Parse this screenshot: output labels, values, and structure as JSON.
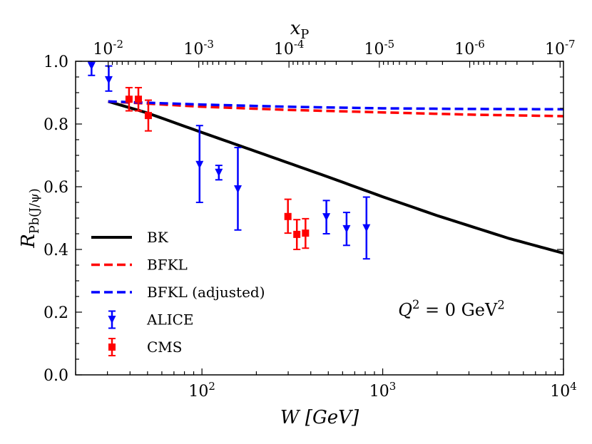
{
  "chart_data": {
    "type": "line",
    "xlabel": "W [GeV]",
    "ylabel": "R_Pb(J/ψ)",
    "top_xlabel": "x_P",
    "x_scale": "log",
    "xlim": [
      20,
      10000
    ],
    "ylim": [
      0.0,
      1.0
    ],
    "x_ticks": [
      {
        "value": 100,
        "label": "10^2"
      },
      {
        "value": 1000,
        "label": "10^3"
      },
      {
        "value": 10000,
        "label": "10^4"
      }
    ],
    "y_ticks": [
      {
        "value": 0.0,
        "label": "0.0"
      },
      {
        "value": 0.2,
        "label": "0.2"
      },
      {
        "value": 0.4,
        "label": "0.4"
      },
      {
        "value": 0.6,
        "label": "0.6"
      },
      {
        "value": 0.8,
        "label": "0.8"
      },
      {
        "value": 1.0,
        "label": "1.0"
      }
    ],
    "top_ticks": [
      {
        "W": 30.3,
        "label": "10^-2"
      },
      {
        "W": 96,
        "label": "10^-3"
      },
      {
        "W": 303,
        "label": "10^-4"
      },
      {
        "W": 958,
        "label": "10^-5"
      },
      {
        "W": 3029,
        "label": "10^-6"
      },
      {
        "W": 9579,
        "label": "10^-7"
      }
    ],
    "annotation": "Q^2 = 0 GeV^2",
    "legend_position": "lower-left",
    "grid": false,
    "series": [
      {
        "name": "BK",
        "kind": "line",
        "style": "solid",
        "color": "#000000",
        "x": [
          30.3,
          50,
          100,
          200,
          500,
          1000,
          2000,
          5000,
          10000
        ],
        "y": [
          0.872,
          0.835,
          0.773,
          0.712,
          0.631,
          0.568,
          0.508,
          0.435,
          0.388
        ]
      },
      {
        "name": "BFKL",
        "kind": "line",
        "style": "dashed",
        "color": "#ff0000",
        "x": [
          30.3,
          100,
          300,
          1000,
          3000,
          10000
        ],
        "y": [
          0.872,
          0.855,
          0.845,
          0.837,
          0.83,
          0.825
        ]
      },
      {
        "name": "BFKL (adjusted)",
        "kind": "line",
        "style": "dashed",
        "color": "#0000ff",
        "x": [
          30.3,
          100,
          300,
          1000,
          3000,
          10000
        ],
        "y": [
          0.872,
          0.862,
          0.855,
          0.85,
          0.848,
          0.847
        ]
      },
      {
        "name": "ALICE",
        "kind": "points",
        "marker": "triangle-down",
        "color": "#0000ff",
        "points": [
          {
            "x": 24.5,
            "y": 0.985,
            "yerr_low": 0.955,
            "yerr_high": 1.0
          },
          {
            "x": 30.5,
            "y": 0.94,
            "yerr_low": 0.905,
            "yerr_high": 0.985
          },
          {
            "x": 97,
            "y": 0.67,
            "yerr_low": 0.55,
            "yerr_high": 0.795
          },
          {
            "x": 124,
            "y": 0.645,
            "yerr_low": 0.622,
            "yerr_high": 0.668
          },
          {
            "x": 158,
            "y": 0.592,
            "yerr_low": 0.462,
            "yerr_high": 0.725
          },
          {
            "x": 488,
            "y": 0.503,
            "yerr_low": 0.45,
            "yerr_high": 0.556
          },
          {
            "x": 631,
            "y": 0.465,
            "yerr_low": 0.413,
            "yerr_high": 0.518
          },
          {
            "x": 813,
            "y": 0.468,
            "yerr_low": 0.37,
            "yerr_high": 0.567
          }
        ]
      },
      {
        "name": "CMS",
        "kind": "points",
        "marker": "square",
        "color": "#ff0000",
        "points": [
          {
            "x": 39.5,
            "y": 0.879,
            "yerr_low": 0.842,
            "yerr_high": 0.916
          },
          {
            "x": 44.5,
            "y": 0.879,
            "yerr_low": 0.842,
            "yerr_high": 0.916
          },
          {
            "x": 50.5,
            "y": 0.827,
            "yerr_low": 0.778,
            "yerr_high": 0.876
          },
          {
            "x": 299,
            "y": 0.505,
            "yerr_low": 0.452,
            "yerr_high": 0.56
          },
          {
            "x": 335,
            "y": 0.448,
            "yerr_low": 0.4,
            "yerr_high": 0.495
          },
          {
            "x": 374,
            "y": 0.452,
            "yerr_low": 0.404,
            "yerr_high": 0.498
          }
        ]
      }
    ]
  }
}
